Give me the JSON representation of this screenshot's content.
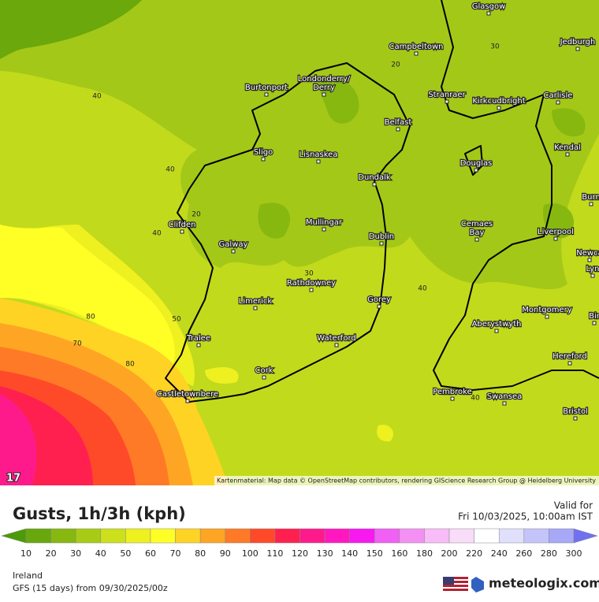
{
  "map": {
    "frame_number": "17",
    "attribution": "Kartenmaterial: Map data © OpenStreetMap contributors, rendering GIScience Research Group @ Heidelberg University",
    "places": [
      "Glasgow",
      "Jedburgh",
      "Campbeltown",
      "Burtonport",
      "Londonderry/",
      "Derry",
      "Stranraer",
      "Kirkcudbright",
      "Carlisle",
      "Belfast",
      "Sligo",
      "Lisnaskea",
      "Douglas",
      "Kendal",
      "Dundalk",
      "Burn",
      "Mullingar",
      "Clifden",
      "Galway",
      "Dublin",
      "Cemaes",
      "Bay",
      "Liverpool",
      "Newca",
      "Lyn",
      "Rathdowney",
      "Limerick",
      "Gorey",
      "Montgomery",
      "Bir",
      "Aberystwyth",
      "Tralee",
      "Waterford",
      "Hereford",
      "Cork",
      "Castletownbere",
      "Pembroke",
      "Swansea",
      "Bristol"
    ],
    "contour_labels": [
      30,
      20,
      40,
      40,
      20,
      40,
      30,
      40,
      50,
      80,
      70,
      80,
      40
    ]
  },
  "footer": {
    "title": "Gusts, 1h/3h (kph)",
    "valid_label": "Valid for",
    "valid_time": "Fri 10/03/2025, 10:00am IST",
    "scale": {
      "labels": [
        10,
        20,
        30,
        40,
        50,
        60,
        70,
        80,
        90,
        100,
        110,
        120,
        130,
        140,
        150,
        160,
        180,
        200,
        220,
        240,
        260,
        280,
        300
      ],
      "colors": [
        "#4c9a08",
        "#68a80c",
        "#86b810",
        "#a8cc16",
        "#cce01c",
        "#eef020",
        "#ffff26",
        "#ffd324",
        "#ffa524",
        "#ff7a26",
        "#ff4a2a",
        "#ff2050",
        "#ff1a8c",
        "#ff18c0",
        "#f818f0",
        "#f060f4",
        "#f490f4",
        "#f8bcf8",
        "#f8dcf8",
        "#ffffff",
        "#e0e0fc",
        "#c4c4fa",
        "#a8a8f8",
        "#8c8cf4",
        "#7070f0"
      ]
    },
    "region": "Ireland",
    "model": "GFS (15 days) from 09/30/2025/00z",
    "brand": "meteologix.com"
  }
}
